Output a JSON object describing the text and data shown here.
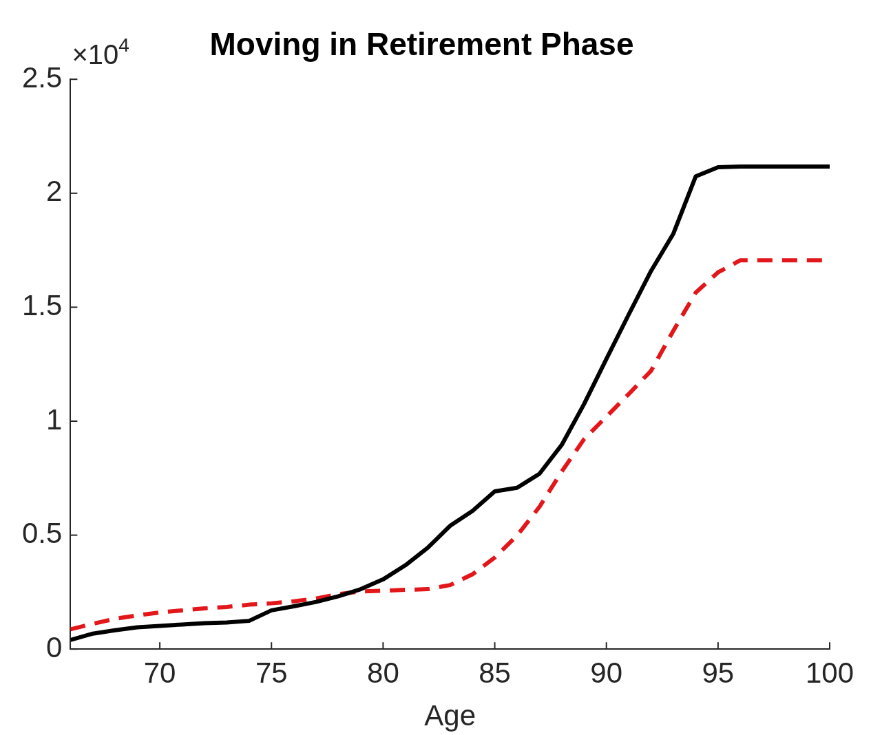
{
  "chart_data": {
    "type": "line",
    "title": "Moving in Retirement Phase",
    "xlabel": "Age",
    "annotations": [
      "×10$^{4}$"
    ],
    "x": [
      66,
      67,
      68,
      69,
      70,
      71,
      72,
      73,
      74,
      75,
      76,
      77,
      78,
      79,
      80,
      81,
      82,
      83,
      84,
      85,
      86,
      87,
      88,
      89,
      90,
      91,
      92,
      93,
      94,
      95,
      96,
      97,
      98,
      99,
      100
    ],
    "xlim": [
      66,
      100
    ],
    "xticks": [
      70,
      75,
      80,
      85,
      90,
      95,
      100
    ],
    "ylim": [
      0,
      2.5
    ],
    "yticks": [
      0,
      0.5,
      1,
      1.5,
      2,
      2.5
    ],
    "grid": false,
    "legend": false,
    "series": [
      {
        "color": "#000000",
        "line_style": "solid",
        "values": [
          0.04,
          0.068,
          0.083,
          0.096,
          0.102,
          0.108,
          0.114,
          0.117,
          0.124,
          0.17,
          0.188,
          0.207,
          0.232,
          0.263,
          0.306,
          0.368,
          0.445,
          0.541,
          0.606,
          0.692,
          0.708,
          0.769,
          0.896,
          1.075,
          1.273,
          1.468,
          1.659,
          1.823,
          2.074,
          2.114,
          2.117,
          2.117,
          2.117,
          2.117,
          2.117
        ]
      },
      {
        "color": "#e3161a",
        "line_style": "dashed",
        "values": [
          0.087,
          0.111,
          0.133,
          0.148,
          0.161,
          0.17,
          0.179,
          0.185,
          0.195,
          0.201,
          0.21,
          0.222,
          0.241,
          0.253,
          0.256,
          0.26,
          0.263,
          0.281,
          0.328,
          0.402,
          0.498,
          0.624,
          0.779,
          0.921,
          1.02,
          1.119,
          1.221,
          1.397,
          1.564,
          1.653,
          1.706,
          1.706,
          1.706,
          1.706,
          1.706
        ]
      }
    ]
  }
}
